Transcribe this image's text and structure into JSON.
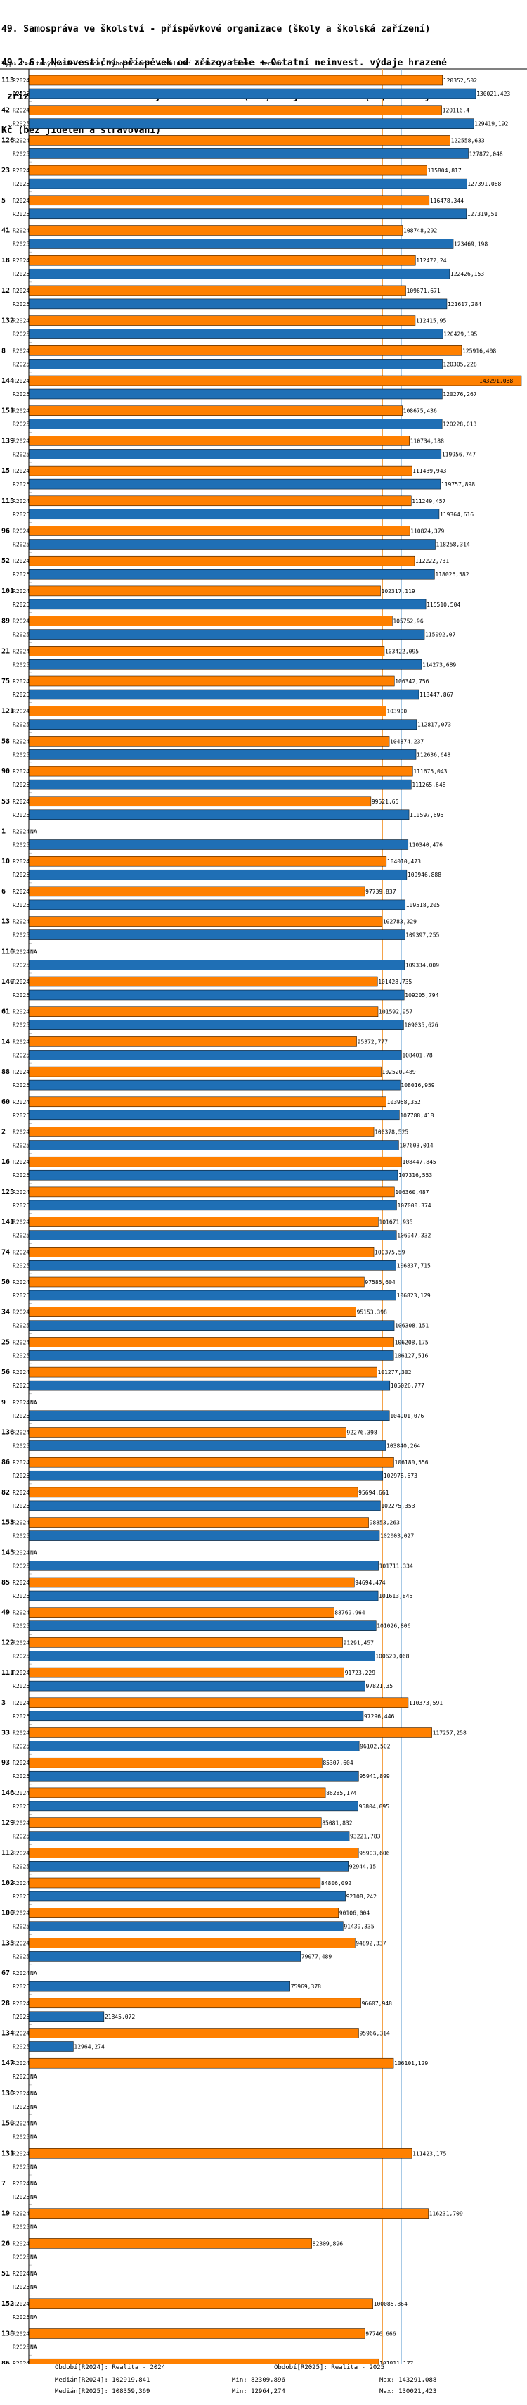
{
  "title_lines": [
    "49. Samospráva ve školství - příspěvkové organizace (školy a školská zařízení)",
    "49.2.6.1 Neinvestiční příspěvek od zřizovatele + Ostatní neinvest. výdaje hrazené",
    " zřizovatelem + Přímé náklady na vzdělávání (NIV) na jednoho žáka (ZŠ)  v celých",
    "Kč (bez jídelen a stravování)"
  ],
  "subtitle": "Typ: Počítaný podle vzorce, Vyhodnocení: Absolutní hodnoty, Průměr: Medián",
  "colors": {
    "r2024": "#ff8000",
    "r2025": "#1f6fb5",
    "median": "#f4a34a",
    "median2": "#6fa7d6",
    "axis": "#000000"
  },
  "chart_data": {
    "type": "bar",
    "orientation": "horizontal",
    "series_names": [
      "R2024",
      "R2025"
    ],
    "x_max": 143291.088,
    "medians": {
      "R2024": 102919.841,
      "R2025": 108359.369
    },
    "null_label": "NA",
    "categories": [
      {
        "id": "113",
        "R2024": "120352,502",
        "R2025": "130021,423"
      },
      {
        "id": "42",
        "R2024": "120116,4",
        "R2025": "129419,192"
      },
      {
        "id": "126",
        "R2024": "122558,633",
        "R2025": "127872,048"
      },
      {
        "id": "23",
        "R2024": "115804,817",
        "R2025": "127391,088"
      },
      {
        "id": "5",
        "R2024": "116478,344",
        "R2025": "127319,51"
      },
      {
        "id": "41",
        "R2024": "108748,292",
        "R2025": "123469,198"
      },
      {
        "id": "18",
        "R2024": "112472,24",
        "R2025": "122426,153"
      },
      {
        "id": "12",
        "R2024": "109671,671",
        "R2025": "121617,284"
      },
      {
        "id": "132",
        "R2024": "112415,95",
        "R2025": "120429,195"
      },
      {
        "id": "8",
        "R2024": "125916,408",
        "R2025": "120305,228"
      },
      {
        "id": "144",
        "R2024": "143291,088",
        "R2025": "120276,267"
      },
      {
        "id": "151",
        "R2024": "108675,436",
        "R2025": "120228,013"
      },
      {
        "id": "139",
        "R2024": "110734,188",
        "R2025": "119956,747"
      },
      {
        "id": "15",
        "R2024": "111439,943",
        "R2025": "119757,898"
      },
      {
        "id": "115",
        "R2024": "111249,457",
        "R2025": "119364,616"
      },
      {
        "id": "96",
        "R2024": "110824,379",
        "R2025": "118258,314"
      },
      {
        "id": "52",
        "R2024": "112222,731",
        "R2025": "118026,582"
      },
      {
        "id": "101",
        "R2024": "102317,119",
        "R2025": "115510,504"
      },
      {
        "id": "89",
        "R2024": "105752,96",
        "R2025": "115092,07"
      },
      {
        "id": "21",
        "R2024": "103422,095",
        "R2025": "114273,689"
      },
      {
        "id": "75",
        "R2024": "106342,756",
        "R2025": "113447,867"
      },
      {
        "id": "121",
        "R2024": "103900",
        "R2025": "112817,073"
      },
      {
        "id": "58",
        "R2024": "104874,237",
        "R2025": "112636,648"
      },
      {
        "id": "90",
        "R2024": "111675,043",
        "R2025": "111265,648"
      },
      {
        "id": "53",
        "R2024": "99521,65",
        "R2025": "110597,696"
      },
      {
        "id": "1",
        "R2024": null,
        "R2025": "110340,476"
      },
      {
        "id": "10",
        "R2024": "104010,473",
        "R2025": "109946,888"
      },
      {
        "id": "6",
        "R2024": "97739,837",
        "R2025": "109518,205"
      },
      {
        "id": "13",
        "R2024": "102783,329",
        "R2025": "109397,255"
      },
      {
        "id": "110",
        "R2024": null,
        "R2025": "109334,009"
      },
      {
        "id": "140",
        "R2024": "101428,735",
        "R2025": "109205,794"
      },
      {
        "id": "61",
        "R2024": "101592,957",
        "R2025": "109035,626"
      },
      {
        "id": "14",
        "R2024": "95372,777",
        "R2025": "108401,78"
      },
      {
        "id": "88",
        "R2024": "102520,489",
        "R2025": "108016,959"
      },
      {
        "id": "60",
        "R2024": "103958,352",
        "R2025": "107788,418"
      },
      {
        "id": "2",
        "R2024": "100378,525",
        "R2025": "107603,014"
      },
      {
        "id": "16",
        "R2024": "108447,845",
        "R2025": "107316,553"
      },
      {
        "id": "125",
        "R2024": "106360,487",
        "R2025": "107000,374"
      },
      {
        "id": "141",
        "R2024": "101671,935",
        "R2025": "106947,332"
      },
      {
        "id": "74",
        "R2024": "100375,59",
        "R2025": "106837,715"
      },
      {
        "id": "50",
        "R2024": "97585,604",
        "R2025": "106823,129"
      },
      {
        "id": "34",
        "R2024": "95153,398",
        "R2025": "106308,151"
      },
      {
        "id": "25",
        "R2024": "106208,175",
        "R2025": "106127,516"
      },
      {
        "id": "56",
        "R2024": "101277,302",
        "R2025": "105026,777"
      },
      {
        "id": "9",
        "R2024": null,
        "R2025": "104901,076"
      },
      {
        "id": "136",
        "R2024": "92276,398",
        "R2025": "103840,264"
      },
      {
        "id": "86",
        "R2024": "106180,556",
        "R2025": "102978,673"
      },
      {
        "id": "82",
        "R2024": "95694,661",
        "R2025": "102275,353"
      },
      {
        "id": "153",
        "R2024": "98853,263",
        "R2025": "102003,027"
      },
      {
        "id": "145",
        "R2024": null,
        "R2025": "101711,334"
      },
      {
        "id": "85",
        "R2024": "94694,474",
        "R2025": "101613,845"
      },
      {
        "id": "49",
        "R2024": "88769,964",
        "R2025": "101026,806"
      },
      {
        "id": "122",
        "R2024": "91291,457",
        "R2025": "100620,068"
      },
      {
        "id": "111",
        "R2024": "91723,229",
        "R2025": "97821,35"
      },
      {
        "id": "3",
        "R2024": "110373,591",
        "R2025": "97296,446"
      },
      {
        "id": "33",
        "R2024": "117257,258",
        "R2025": "96102,502"
      },
      {
        "id": "93",
        "R2024": "85307,604",
        "R2025": "95941,899"
      },
      {
        "id": "146",
        "R2024": "86285,174",
        "R2025": "95804,095"
      },
      {
        "id": "129",
        "R2024": "85081,832",
        "R2025": "93221,783"
      },
      {
        "id": "112",
        "R2024": "95903,606",
        "R2025": "92944,15"
      },
      {
        "id": "102",
        "R2024": "84806,092",
        "R2025": "92108,242"
      },
      {
        "id": "100",
        "R2024": "90106,004",
        "R2025": "91439,335"
      },
      {
        "id": "135",
        "R2024": "94892,337",
        "R2025": "79077,489"
      },
      {
        "id": "67",
        "R2024": null,
        "R2025": "75969,378"
      },
      {
        "id": "28",
        "R2024": "96607,948",
        "R2025": "21845,072"
      },
      {
        "id": "134",
        "R2024": "95966,314",
        "R2025": "12964,274"
      },
      {
        "id": "147",
        "R2024": "106101,129",
        "R2025": null
      },
      {
        "id": "130",
        "R2024": null,
        "R2025": null
      },
      {
        "id": "150",
        "R2024": null,
        "R2025": null
      },
      {
        "id": "131",
        "R2024": "111423,175",
        "R2025": null
      },
      {
        "id": "7",
        "R2024": null,
        "R2025": null
      },
      {
        "id": "19",
        "R2024": "116231,709",
        "R2025": null
      },
      {
        "id": "26",
        "R2024": "82309,896",
        "R2025": null
      },
      {
        "id": "51",
        "R2024": null,
        "R2025": null
      },
      {
        "id": "152",
        "R2024": "100085,864",
        "R2025": null
      },
      {
        "id": "138",
        "R2024": "97746,666",
        "R2025": null
      },
      {
        "id": "86",
        "R2024": "101811,177",
        "R2025": null
      }
    ]
  },
  "footer": {
    "r2024": "Období[R2024]: Realita - 2024",
    "r2025": "Období[R2025]: Realita - 2025",
    "median_r2024": "Medián[R2024]: 102919,841",
    "median_r2025": "Medián[R2025]: 108359,369",
    "min_r2024": "Min: 82309,896",
    "min_r2025": "Min: 12964,274",
    "max_r2024": "Max: 143291,088",
    "max_r2025": "Max: 130021,423"
  }
}
